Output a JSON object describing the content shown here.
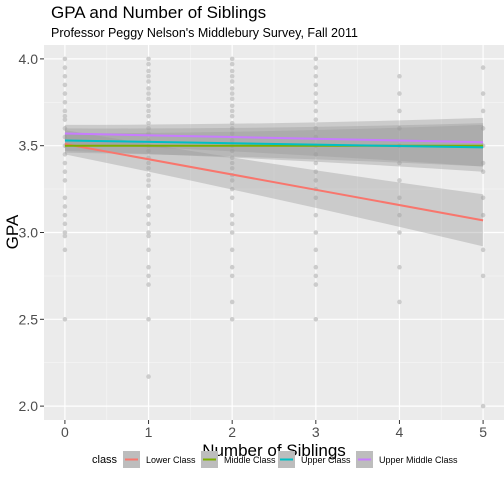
{
  "chart_data": {
    "type": "scatter",
    "title": "GPA and Number of Siblings",
    "subtitle": "Professor Peggy Nelson's Middlebury Survey, Fall 2011",
    "xlabel": "Number of Siblings",
    "ylabel": "GPA",
    "xlim": [
      -0.25,
      5.25
    ],
    "ylim": [
      1.92,
      4.08
    ],
    "x_ticks": [
      "0",
      "1",
      "2",
      "3",
      "4",
      "5"
    ],
    "y_ticks": [
      "2.0",
      "2.5",
      "3.0",
      "3.5",
      "4.0"
    ],
    "grid": true,
    "legend": {
      "title": "class",
      "position": "bottom",
      "entries": [
        "Lower Class",
        "Middle Class",
        "Upper Class",
        "Upper Middle Class"
      ]
    },
    "points": {
      "color": "#c8c8c8",
      "groups": [
        {
          "x": 0,
          "y": [
            4.0,
            3.95,
            3.9,
            3.85,
            3.8,
            3.75,
            3.7,
            3.67,
            3.65,
            3.6,
            3.55,
            3.5,
            3.45,
            3.4,
            3.35,
            3.3,
            3.2,
            3.15,
            3.1,
            3.05,
            3.0,
            2.98,
            2.9,
            2.5
          ]
        },
        {
          "x": 1,
          "y": [
            4.0,
            3.97,
            3.93,
            3.9,
            3.87,
            3.83,
            3.8,
            3.77,
            3.73,
            3.7,
            3.67,
            3.63,
            3.6,
            3.57,
            3.53,
            3.5,
            3.47,
            3.43,
            3.4,
            3.37,
            3.33,
            3.3,
            3.27,
            3.2,
            3.15,
            3.1,
            3.05,
            3.0,
            2.98,
            2.9,
            2.8,
            2.75,
            2.7,
            2.5,
            2.17
          ]
        },
        {
          "x": 2,
          "y": [
            4.0,
            3.97,
            3.93,
            3.9,
            3.87,
            3.83,
            3.8,
            3.77,
            3.73,
            3.7,
            3.67,
            3.63,
            3.6,
            3.57,
            3.53,
            3.5,
            3.47,
            3.43,
            3.4,
            3.37,
            3.33,
            3.3,
            3.25,
            3.2,
            3.1,
            3.05,
            3.0,
            2.9,
            2.8,
            2.75,
            2.6,
            2.5
          ]
        },
        {
          "x": 3,
          "y": [
            4.0,
            3.95,
            3.9,
            3.85,
            3.8,
            3.75,
            3.7,
            3.65,
            3.6,
            3.55,
            3.5,
            3.45,
            3.4,
            3.35,
            3.3,
            3.25,
            3.2,
            3.1,
            3.0,
            2.9,
            2.8,
            2.75,
            2.7,
            2.5
          ]
        },
        {
          "x": 4,
          "y": [
            3.9,
            3.8,
            3.7,
            3.6,
            3.5,
            3.4,
            3.3,
            3.2,
            3.1,
            3.0,
            2.8,
            2.6
          ]
        },
        {
          "x": 5,
          "y": [
            3.95,
            3.8,
            3.7,
            3.6,
            3.5,
            3.4,
            3.35,
            3.2,
            3.1,
            2.9,
            2.75,
            2.0
          ]
        }
      ]
    },
    "series": [
      {
        "name": "Lower Class",
        "color": "#F8766D",
        "x": [
          0,
          5
        ],
        "y": [
          3.51,
          3.07
        ],
        "ci_lower": [
          3.45,
          2.92
        ],
        "ci_upper": [
          3.59,
          3.22
        ]
      },
      {
        "name": "Middle Class",
        "color": "#7CAE00",
        "x": [
          0,
          5
        ],
        "y": [
          3.5,
          3.5
        ],
        "ci_lower": [
          3.46,
          3.38
        ],
        "ci_upper": [
          3.57,
          3.62
        ]
      },
      {
        "name": "Upper Class",
        "color": "#00BFC4",
        "x": [
          0,
          5
        ],
        "y": [
          3.53,
          3.49
        ],
        "ci_lower": [
          3.47,
          3.35
        ],
        "ci_upper": [
          3.6,
          3.63
        ]
      },
      {
        "name": "Upper Middle Class",
        "color": "#C77CFF",
        "x": [
          0,
          5
        ],
        "y": [
          3.57,
          3.52
        ],
        "ci_lower": [
          3.51,
          3.38
        ],
        "ci_upper": [
          3.62,
          3.66
        ]
      }
    ]
  }
}
